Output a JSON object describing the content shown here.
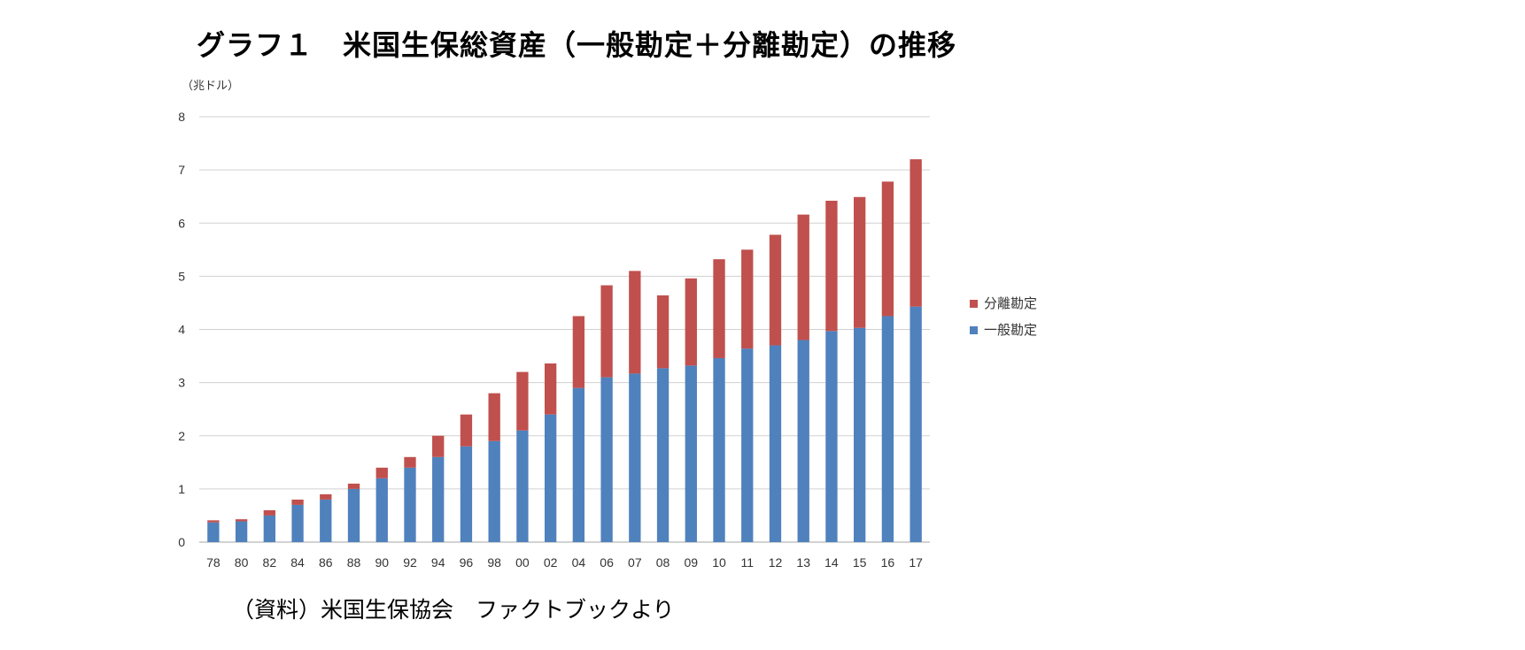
{
  "title": "グラフ１　米国生保総資産（一般勘定＋分離勘定）の推移",
  "unit_label": "（兆ドル）",
  "source_note": "（資料）米国生保協会　ファクトブックより",
  "chart_data": {
    "type": "bar",
    "stacked": true,
    "categories": [
      "78",
      "80",
      "82",
      "84",
      "86",
      "88",
      "90",
      "92",
      "94",
      "96",
      "98",
      "00",
      "02",
      "04",
      "06",
      "07",
      "08",
      "09",
      "10",
      "11",
      "12",
      "13",
      "14",
      "15",
      "16",
      "17"
    ],
    "series": [
      {
        "name": "一般勘定",
        "color": "#4f81bd",
        "values": [
          0.37,
          0.39,
          0.5,
          0.7,
          0.8,
          1.0,
          1.2,
          1.4,
          1.6,
          1.8,
          1.9,
          2.1,
          2.4,
          2.9,
          3.1,
          3.17,
          3.27,
          3.32,
          3.46,
          3.64,
          3.7,
          3.8,
          3.97,
          4.03,
          4.25,
          4.43
        ]
      },
      {
        "name": "分離勘定",
        "color": "#c0504d",
        "values": [
          0.04,
          0.04,
          0.1,
          0.1,
          0.1,
          0.1,
          0.2,
          0.2,
          0.4,
          0.6,
          0.9,
          1.1,
          0.96,
          1.35,
          1.73,
          1.93,
          1.37,
          1.64,
          1.86,
          1.86,
          2.08,
          2.36,
          2.45,
          2.46,
          2.53,
          2.77
        ]
      }
    ],
    "ylim": [
      0,
      8
    ],
    "yticks": [
      0,
      1,
      2,
      3,
      4,
      5,
      6,
      7,
      8
    ],
    "grid": true,
    "legend_position": "right",
    "legend_order": [
      "分離勘定",
      "一般勘定"
    ]
  }
}
